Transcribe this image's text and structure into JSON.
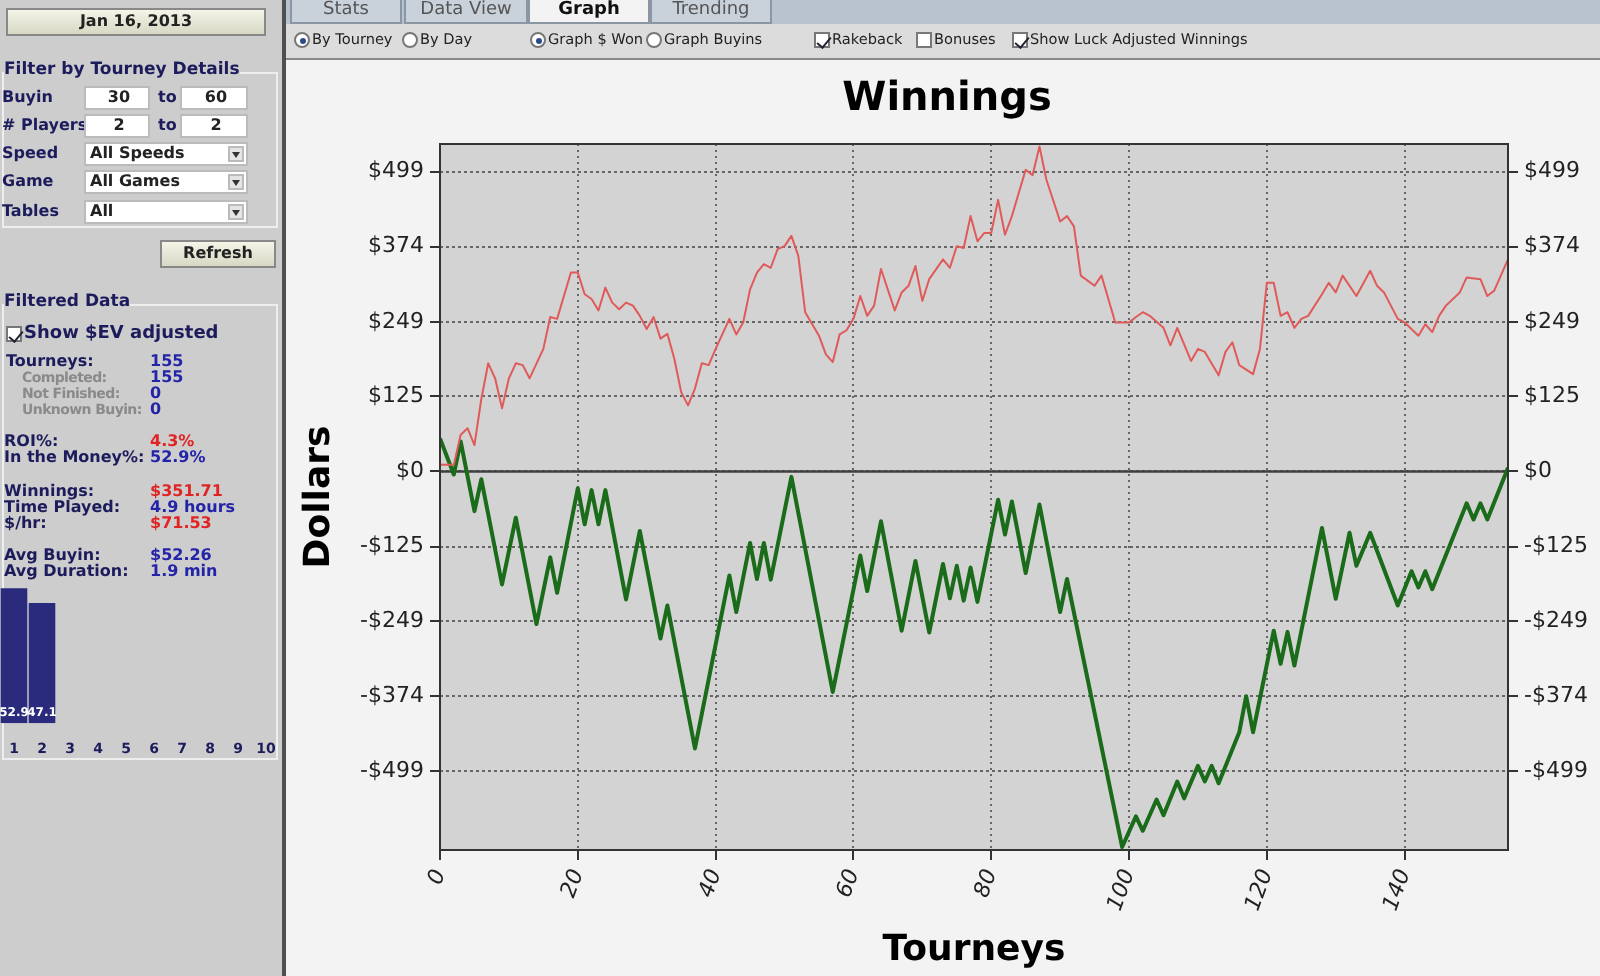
{
  "chart_data": [
    {
      "type": "other",
      "annotations": [
        "Stats",
        "Data View",
        "Graph",
        "Trending",
        "By Tourney",
        "By Day",
        "Graph $ Won",
        "Graph Buyins",
        "Rakeback",
        "Bonuses",
        "Show Luck Adjusted Winnings"
      ]
    },
    {
      "type": "other",
      "annotations": [
        "Jan 16, 2013",
        "Filter by Tourney Details",
        "Buyin",
        "30",
        "to",
        "60",
        "# Players",
        "2",
        "to",
        "2",
        "Speed",
        "All Speeds",
        "Game",
        "All Games",
        "Tables",
        "All",
        "Refresh",
        "Filtered Data",
        "Show $EV adjusted",
        "Tourneys:",
        "155",
        "Completed:",
        "155",
        "Not Finished:",
        "0",
        "Unknown Buyin:",
        "0",
        "ROI%:",
        "4.3%",
        "In the Money%:",
        "52.9%",
        "Winnings:",
        "$351.71",
        "Time Played:",
        "4.9 hours",
        "$/hr:",
        "$71.53",
        "Avg Buyin:",
        "$52.26",
        "Avg Duration:",
        "1.9 min"
      ]
    },
    {
      "type": "bar",
      "categories": [
        "1",
        "2",
        "3",
        "4",
        "5",
        "6",
        "7",
        "8",
        "9",
        "10"
      ],
      "values": [
        52.9,
        47.1,
        null,
        null,
        null,
        null,
        null,
        null,
        null,
        null
      ],
      "color": "#2b2b7e",
      "data_labels": true
    },
    {
      "type": "line",
      "title": "Winnings",
      "xlabel": "Tourneys",
      "ylabel": "Dollars",
      "xlim": [
        0,
        155
      ],
      "xticks": [
        0,
        20,
        40,
        60,
        80,
        100,
        120,
        140
      ],
      "ylim": [
        -630,
        545
      ],
      "yticks": [
        {
          "value": 499,
          "label": "$499"
        },
        {
          "value": 374,
          "label": "$374"
        },
        {
          "value": 249,
          "label": "$249"
        },
        {
          "value": 125,
          "label": "$125"
        },
        {
          "value": 0,
          "label": "$0"
        },
        {
          "value": -125,
          "label": "-$125"
        },
        {
          "value": -249,
          "label": "-$249"
        },
        {
          "value": -374,
          "label": "-$374"
        },
        {
          "value": -499,
          "label": "-$499"
        }
      ],
      "y2lim": [
        -630,
        545
      ],
      "y2ticks": [
        {
          "value": 499,
          "label": "$499"
        },
        {
          "value": 374,
          "label": "$374"
        },
        {
          "value": 249,
          "label": "$249"
        },
        {
          "value": 125,
          "label": "$125"
        },
        {
          "value": 0,
          "label": "$0"
        },
        {
          "value": -125,
          "label": "-$125"
        },
        {
          "value": -249,
          "label": "-$249"
        },
        {
          "value": -374,
          "label": "-$374"
        },
        {
          "value": -499,
          "label": "-$499"
        }
      ],
      "grid": true,
      "marker": "none",
      "ref_lines": [
        {
          "axis": "y",
          "value": 0,
          "color": "#404040"
        }
      ],
      "series": [
        {
          "color": "#e05a5a",
          "x": [
            0,
            2,
            3,
            4,
            5,
            6,
            7,
            8,
            9,
            10,
            11,
            12,
            13,
            15,
            16,
            17,
            19,
            20,
            21,
            22,
            23,
            24,
            25,
            26,
            27,
            28,
            29,
            30,
            31,
            32,
            33,
            34,
            35,
            36,
            37,
            38,
            39,
            40,
            42,
            43,
            44,
            45,
            46,
            47,
            48,
            49,
            50,
            51,
            52,
            53,
            55,
            56,
            57,
            58,
            59,
            60,
            61,
            62,
            63,
            64,
            66,
            67,
            68,
            69,
            70,
            71,
            73,
            74,
            75,
            76,
            77,
            78,
            79,
            80,
            81,
            82,
            83,
            85,
            86,
            87,
            88,
            90,
            91,
            92,
            93,
            95,
            96,
            98,
            100,
            101,
            102,
            103,
            105,
            106,
            107,
            109,
            110,
            111,
            113,
            114,
            115,
            116,
            118,
            119,
            120,
            121,
            122,
            123,
            124,
            125,
            126,
            128,
            129,
            130,
            131,
            133,
            135,
            136,
            137,
            139,
            140,
            142,
            143,
            144,
            145,
            146,
            148,
            149,
            151,
            152,
            153,
            155
          ],
          "values": [
            11,
            11,
            61,
            72,
            44,
            121,
            180,
            155,
            105,
            155,
            180,
            177,
            155,
            204,
            257,
            254,
            331,
            331,
            295,
            287,
            268,
            306,
            281,
            270,
            281,
            276,
            259,
            237,
            257,
            221,
            229,
            188,
            132,
            110,
            138,
            180,
            177,
            204,
            254,
            228,
            248,
            303,
            331,
            345,
            339,
            370,
            375,
            392,
            359,
            265,
            226,
            195,
            182,
            228,
            235,
            254,
            292,
            259,
            276,
            337,
            268,
            298,
            309,
            342,
            284,
            320,
            353,
            339,
            375,
            372,
            425,
            383,
            397,
            397,
            452,
            394,
            425,
            502,
            493,
            541,
            486,
            416,
            425,
            408,
            326,
            309,
            326,
            248,
            248,
            257,
            265,
            259,
            239,
            210,
            239,
            184,
            204,
            199,
            160,
            199,
            215,
            177,
            162,
            204,
            314,
            314,
            259,
            265,
            239,
            254,
            259,
            295,
            314,
            298,
            326,
            292,
            334,
            309,
            298,
            254,
            248,
            226,
            245,
            232,
            259,
            276,
            298,
            323,
            320,
            292,
            301,
            353
          ]
        },
        {
          "color": "#1a6b1a",
          "x": [
            0,
            2,
            3,
            5,
            6,
            9,
            11,
            14,
            16,
            17,
            20,
            21,
            22,
            23,
            24,
            27,
            29,
            32,
            33,
            37,
            42,
            43,
            45,
            46,
            47,
            48,
            51,
            57,
            61,
            62,
            64,
            67,
            69,
            71,
            73,
            74,
            75,
            76,
            77,
            78,
            81,
            82,
            83,
            85,
            87,
            90,
            91,
            99,
            101,
            102,
            104,
            105,
            107,
            108,
            110,
            111,
            112,
            113,
            116,
            117,
            118,
            121,
            122,
            123,
            124,
            128,
            130,
            132,
            133,
            135,
            139,
            141,
            142,
            143,
            144,
            149,
            150,
            151,
            152,
            155
          ],
          "values": [
            55,
            -5,
            50,
            -66,
            -13,
            -188,
            -77,
            -254,
            -143,
            -202,
            -28,
            -88,
            -31,
            -88,
            -31,
            -213,
            -99,
            -278,
            -223,
            -461,
            -173,
            -234,
            -119,
            -179,
            -119,
            -180,
            -9,
            -367,
            -140,
            -199,
            -83,
            -265,
            -149,
            -268,
            -154,
            -211,
            -157,
            -215,
            -160,
            -217,
            -47,
            -105,
            -50,
            -169,
            -55,
            -234,
            -179,
            -625,
            -574,
            -598,
            -546,
            -572,
            -516,
            -544,
            -490,
            -516,
            -490,
            -519,
            -434,
            -374,
            -434,
            -265,
            -320,
            -267,
            -323,
            -94,
            -212,
            -102,
            -157,
            -102,
            -223,
            -166,
            -193,
            -166,
            -196,
            -53,
            -80,
            -53,
            -80,
            6
          ]
        }
      ]
    }
  ]
}
